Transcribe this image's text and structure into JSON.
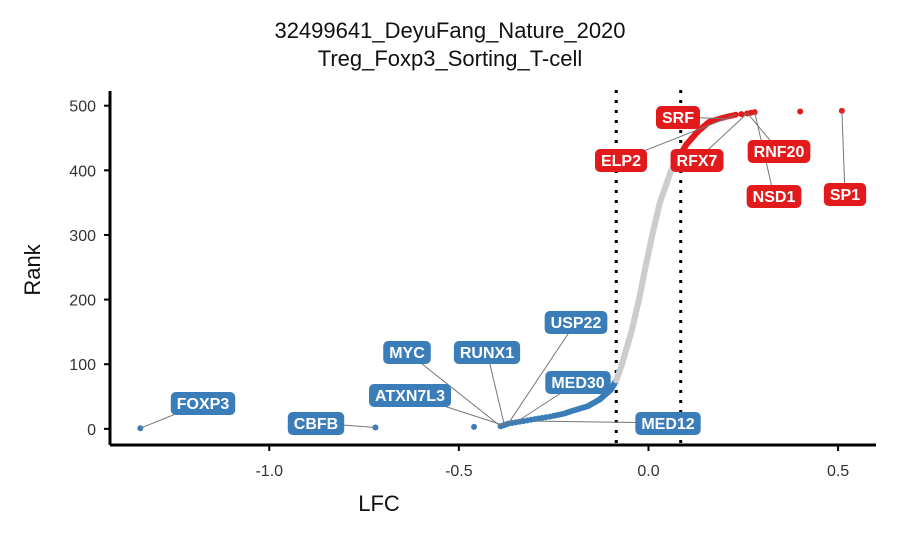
{
  "chart_data": {
    "type": "scatter",
    "title": "32499641_DeyuFang_Nature_2020",
    "subtitle": "Treg_Foxp3_Sorting_T-cell",
    "xlabel": "LFC",
    "ylabel": "Rank",
    "xlim": [
      -1.42,
      0.6
    ],
    "ylim": [
      -25,
      515
    ],
    "x_ticks": [
      -1.0,
      -0.5,
      0.0,
      0.5
    ],
    "x_tick_labels": [
      "-1.0",
      "-0.5",
      "0.0",
      "0.5"
    ],
    "y_ticks": [
      0,
      100,
      200,
      300,
      400,
      500
    ],
    "y_tick_labels": [
      "0",
      "100",
      "200",
      "300",
      "400",
      "500"
    ],
    "thresholds": [
      -0.085,
      0.085
    ],
    "grid": false,
    "colors": {
      "negative": "#3a7db8",
      "neutral": "#cccccc",
      "positive": "#e31a1c",
      "label_text": "#ffffff",
      "connector": "#777777",
      "axis": "#000000"
    },
    "curve": {
      "rank_count": 492,
      "neutral_rank_range": [
        75,
        410
      ],
      "anchors": [
        [
          1,
          -1.34
        ],
        [
          2,
          -0.72
        ],
        [
          3,
          -0.46
        ],
        [
          4,
          -0.39
        ],
        [
          8,
          -0.37
        ],
        [
          10,
          -0.35
        ],
        [
          12,
          -0.33
        ],
        [
          14,
          -0.31
        ],
        [
          16,
          -0.29
        ],
        [
          18,
          -0.27
        ],
        [
          20,
          -0.25
        ],
        [
          24,
          -0.22
        ],
        [
          28,
          -0.2
        ],
        [
          35,
          -0.16
        ],
        [
          45,
          -0.13
        ],
        [
          60,
          -0.1
        ],
        [
          75,
          -0.085
        ],
        [
          100,
          -0.07
        ],
        [
          150,
          -0.045
        ],
        [
          200,
          -0.025
        ],
        [
          250,
          -0.008
        ],
        [
          300,
          0.01
        ],
        [
          350,
          0.03
        ],
        [
          400,
          0.06
        ],
        [
          420,
          0.08
        ],
        [
          440,
          0.1
        ],
        [
          460,
          0.13
        ],
        [
          475,
          0.16
        ],
        [
          482,
          0.2
        ],
        [
          486,
          0.23
        ],
        [
          488,
          0.26
        ],
        [
          490,
          0.28
        ],
        [
          491,
          0.4
        ],
        [
          492,
          0.51
        ]
      ]
    },
    "labeled_points": [
      {
        "label": "FOXP3",
        "x": -1.34,
        "y": 1,
        "group": "negative"
      },
      {
        "label": "CBFB",
        "x": -0.72,
        "y": 2,
        "group": "negative"
      },
      {
        "label": "ATXN7L3",
        "x": -0.38,
        "y": 5,
        "group": "negative"
      },
      {
        "label": "RUNX1",
        "x": -0.38,
        "y": 6,
        "group": "negative"
      },
      {
        "label": "MYC",
        "x": -0.39,
        "y": 4,
        "group": "negative"
      },
      {
        "label": "USP22",
        "x": -0.37,
        "y": 8,
        "group": "negative"
      },
      {
        "label": "MED30",
        "x": -0.35,
        "y": 10,
        "group": "negative"
      },
      {
        "label": "MED12",
        "x": -0.3,
        "y": 12,
        "group": "negative"
      },
      {
        "label": "SRF",
        "x": 0.2,
        "y": 480,
        "group": "positive"
      },
      {
        "label": "ELP2",
        "x": 0.23,
        "y": 486,
        "group": "positive"
      },
      {
        "label": "RFX7",
        "x": 0.26,
        "y": 488,
        "group": "positive"
      },
      {
        "label": "RNF20",
        "x": 0.26,
        "y": 489,
        "group": "positive"
      },
      {
        "label": "NSD1",
        "x": 0.28,
        "y": 490,
        "group": "positive"
      },
      {
        "label": "SP1",
        "x": 0.51,
        "y": 492,
        "group": "positive"
      }
    ]
  }
}
